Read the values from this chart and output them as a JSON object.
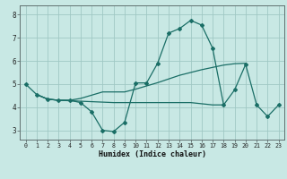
{
  "bg_color": "#c8e8e4",
  "grid_color": "#a0c8c4",
  "line_color": "#1a6e66",
  "xlabel": "Humidex (Indice chaleur)",
  "xlim": [
    -0.5,
    23.5
  ],
  "ylim": [
    2.6,
    8.4
  ],
  "yticks": [
    3,
    4,
    5,
    6,
    7,
    8
  ],
  "xticks": [
    0,
    1,
    2,
    3,
    4,
    5,
    6,
    7,
    8,
    9,
    10,
    11,
    12,
    13,
    14,
    15,
    16,
    17,
    18,
    19,
    20,
    21,
    22,
    23
  ],
  "line1_x": [
    0,
    1,
    2,
    3,
    4,
    5,
    6,
    7,
    8,
    9,
    10,
    11,
    12,
    13,
    14,
    15,
    16,
    17,
    18,
    19,
    20,
    21,
    22,
    23
  ],
  "line1_y": [
    5.0,
    4.55,
    4.35,
    4.3,
    4.3,
    4.2,
    3.8,
    3.0,
    2.95,
    3.35,
    5.05,
    5.05,
    5.9,
    7.2,
    7.4,
    7.75,
    7.55,
    6.55,
    4.1,
    4.75,
    5.85,
    4.1,
    3.6,
    4.1
  ],
  "line2_x": [
    1,
    2,
    3,
    4,
    5,
    6,
    7,
    8,
    9,
    10,
    11,
    12,
    13,
    14,
    15,
    16,
    17,
    18
  ],
  "line2_y": [
    4.55,
    4.35,
    4.3,
    4.28,
    4.26,
    4.24,
    4.22,
    4.2,
    4.2,
    4.2,
    4.2,
    4.2,
    4.2,
    4.2,
    4.2,
    4.15,
    4.1,
    4.1
  ],
  "line3_x": [
    1,
    2,
    3,
    4,
    5,
    6,
    7,
    8,
    9,
    10,
    11,
    12,
    13,
    14,
    15,
    16,
    17,
    18,
    19,
    20
  ],
  "line3_y": [
    4.55,
    4.35,
    4.3,
    4.3,
    4.38,
    4.52,
    4.66,
    4.66,
    4.66,
    4.78,
    4.92,
    5.06,
    5.22,
    5.38,
    5.5,
    5.62,
    5.72,
    5.82,
    5.88,
    5.9
  ]
}
